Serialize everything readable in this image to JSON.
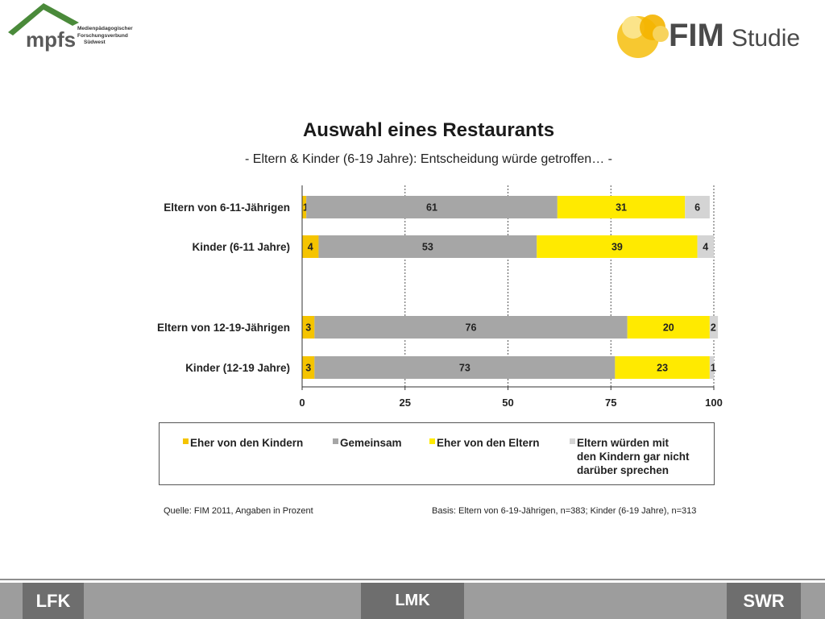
{
  "header": {
    "mpfs_logo_text": "mpfs",
    "mpfs_subtitle_lines": [
      "Medienpädagogischer",
      "Forschungsverbund",
      "Südwest"
    ],
    "fim_logo_text": "FIM",
    "fim_logo_suffix": "Studie"
  },
  "chart_data": {
    "type": "bar",
    "orientation": "horizontal",
    "stacked": true,
    "title": "Auswahl eines Restaurants",
    "subtitle": "- Eltern & Kinder (6-19 Jahre): Entscheidung würde getroffen… -",
    "categories": [
      "Eltern von 6-11-Jährigen",
      "Kinder (6-11  Jahre)",
      "Eltern von 12-19-Jährigen",
      "Kinder (12-19  Jahre)"
    ],
    "series": [
      {
        "name": "Eher von den Kindern",
        "color": "#f5c400",
        "values": [
          1,
          4,
          3,
          3
        ]
      },
      {
        "name": "Gemeinsam",
        "color": "#a6a6a6",
        "values": [
          61,
          53,
          76,
          73
        ]
      },
      {
        "name": "Eher von den Eltern",
        "color": "#ffea00",
        "values": [
          31,
          39,
          20,
          23
        ]
      },
      {
        "name": "Eltern würden  mit den Kindern  gar  nicht darüber  sprechen",
        "color": "#d4d4d4",
        "values": [
          6,
          4,
          2,
          1
        ]
      }
    ],
    "xlim": [
      0,
      100
    ],
    "xticks": [
      "0",
      "25",
      "50",
      "75",
      "100"
    ],
    "grid": "dotted vertical",
    "legend": "bottom"
  },
  "legend": {
    "items": [
      {
        "lines": [
          "Eher von den Kindern"
        ]
      },
      {
        "lines": [
          "Gemeinsam"
        ]
      },
      {
        "lines": [
          "Eher von den Eltern"
        ]
      },
      {
        "lines": [
          "Eltern würden  mit",
          "den Kindern  gar  nicht",
          "darüber  sprechen"
        ]
      }
    ]
  },
  "footer": {
    "source": "Quelle: FIM 2011,  Angaben in Prozent",
    "basis": "Basis: Eltern von 6-19-Jährigen, n=383; Kinder (6-19 Jahre), n=313",
    "logo_left": "LFK",
    "logo_center": "LMK",
    "logo_right": "SWR"
  }
}
